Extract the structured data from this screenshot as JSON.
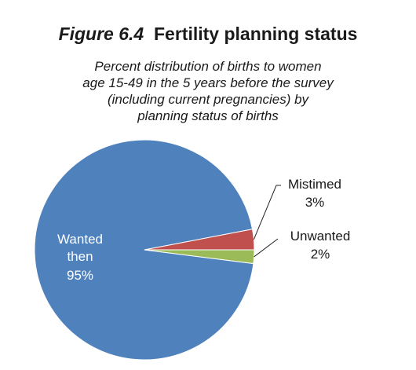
{
  "chart_data": {
    "type": "pie",
    "title_prefix": "Figure 6.4",
    "title": "Fertility planning status",
    "subtitle_lines": [
      "Percent distribution of births to women",
      "age 15-49 in the 5 years before the survey",
      "(including current pregnancies) by",
      "planning status of births"
    ],
    "slices": [
      {
        "label_lines": [
          "Wanted",
          "then"
        ],
        "value": 95,
        "value_label": "95%",
        "color": "#4f81bd"
      },
      {
        "label_lines": [
          "Mistimed"
        ],
        "value": 3,
        "value_label": "3%",
        "color": "#c0504d"
      },
      {
        "label_lines": [
          "Unwanted"
        ],
        "value": 2,
        "value_label": "2%",
        "color": "#9bbb59"
      }
    ]
  }
}
